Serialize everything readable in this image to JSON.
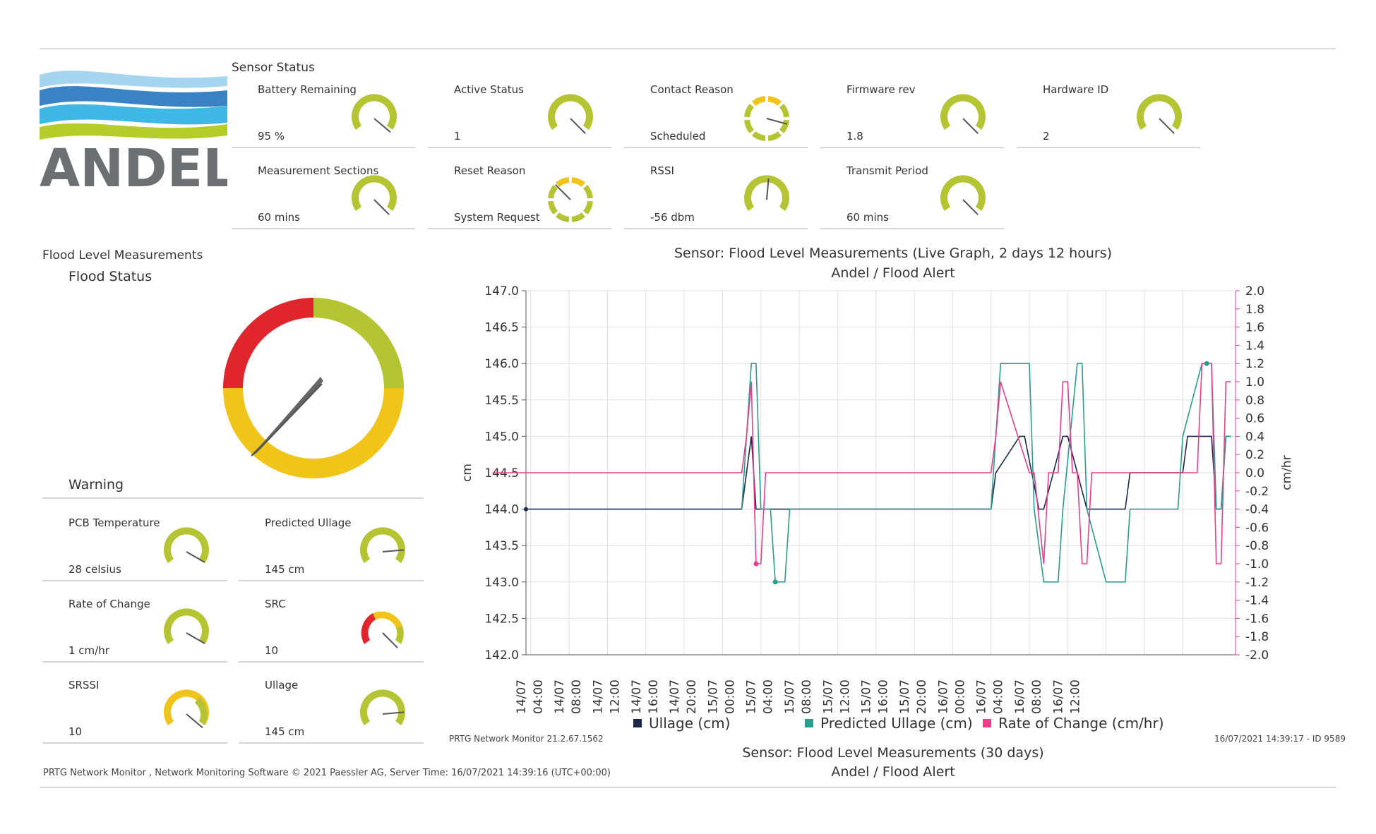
{
  "logo": {
    "text": "ANDEL"
  },
  "sensor_status": {
    "title": "Sensor Status",
    "tiles": [
      {
        "label": "Battery Remaining",
        "value": "95 %"
      },
      {
        "label": "Active Status",
        "value": "1"
      },
      {
        "label": "Contact Reason",
        "value": "Scheduled"
      },
      {
        "label": "Firmware rev",
        "value": "1.8"
      },
      {
        "label": "Hardware ID",
        "value": "2"
      },
      {
        "label": "Measurement Sections",
        "value": "60 mins"
      },
      {
        "label": "Reset Reason",
        "value": "System Request"
      },
      {
        "label": "RSSI",
        "value": "-56 dbm"
      },
      {
        "label": "Transmit Period",
        "value": "60 mins"
      }
    ]
  },
  "flood": {
    "section_title": "Flood Level Measurements",
    "status_title": "Flood Status",
    "warning_title": "Warning",
    "tiles": [
      {
        "label": "PCB Temperature",
        "value": "28 celsius"
      },
      {
        "label": "Predicted Ullage",
        "value": "145 cm"
      },
      {
        "label": "Rate of Change",
        "value": "1 cm/hr"
      },
      {
        "label": "SRC",
        "value": "10"
      },
      {
        "label": "SRSSI",
        "value": "10"
      },
      {
        "label": "Ullage",
        "value": "145 cm"
      }
    ]
  },
  "chart_data": {
    "type": "line",
    "title": "Sensor: Flood Level Measurements (Live Graph, 2 days 12 hours)",
    "subtitle": "Andel / Flood Alert",
    "ylabel": "cm",
    "y2label": "cm/hr",
    "ylim": [
      142.0,
      147.0
    ],
    "y2lim": [
      -2.0,
      2.0
    ],
    "yticks": [
      "147.0",
      "146.5",
      "146.0",
      "145.5",
      "145.0",
      "144.5",
      "144.0",
      "143.5",
      "143.0",
      "142.5",
      "142.0"
    ],
    "y2ticks": [
      "2.0",
      "1.8",
      "1.6",
      "1.4",
      "1.2",
      "1.0",
      "0.8",
      "0.6",
      "0.4",
      "0.2",
      "0.0",
      "-0.2",
      "-0.4",
      "-0.6",
      "-0.8",
      "-1.0",
      "-1.2",
      "-1.4",
      "-1.6",
      "-1.8",
      "-2.0"
    ],
    "xticks": [
      "14/07",
      "04:00",
      "14/07",
      "08:00",
      "14/07",
      "12:00",
      "14/07",
      "16:00",
      "14/07",
      "20:00",
      "15/07",
      "00:00",
      "15/07",
      "04:00",
      "15/07",
      "08:00",
      "15/07",
      "12:00",
      "15/07",
      "16:00",
      "15/07",
      "20:00",
      "16/07",
      "00:00",
      "16/07",
      "04:00",
      "16/07",
      "08:00",
      "16/07",
      "12:00"
    ],
    "grid": true,
    "legend_position": "bottom",
    "x_unit": "hours since 14/07 00:00",
    "series": [
      {
        "name": "Ullage (cm)",
        "color": "#1b2a4a",
        "axis": "left",
        "x": [
          3.5,
          26,
          26.5,
          27,
          27.5,
          52,
          52.5,
          55,
          55.5,
          57,
          57.5,
          59.5,
          60,
          62,
          62.5,
          63.5,
          64,
          66,
          66.5,
          72,
          72.5,
          75,
          75.5,
          76,
          76.5,
          77
        ],
        "y": [
          144.0,
          144.0,
          144.5,
          145.0,
          144.0,
          144.0,
          144.5,
          145.0,
          145.0,
          144.0,
          144.0,
          145.0,
          145.0,
          144.0,
          144.0,
          144.0,
          144.0,
          144.0,
          144.5,
          144.5,
          145.0,
          145.0,
          144.0,
          144.0,
          145.0,
          145.0
        ]
      },
      {
        "name": "Predicted Ullage (cm)",
        "color": "#2a9d8f",
        "axis": "left",
        "x": [
          26,
          26.5,
          27,
          27.5,
          28,
          29,
          29.5,
          30.5,
          31,
          52,
          52.5,
          53,
          56,
          56.5,
          57.5,
          59,
          59.5,
          61,
          61.5,
          62,
          64,
          64.5,
          66,
          66.5,
          67,
          71.5,
          72,
          74,
          74.5,
          75,
          75.5,
          76,
          76.5,
          77
        ],
        "y": [
          144.0,
          145.0,
          146.0,
          146.0,
          144.0,
          144.0,
          143.0,
          143.0,
          144.0,
          144.0,
          145.0,
          146.0,
          146.0,
          144.0,
          143.0,
          143.0,
          144.0,
          146.0,
          146.0,
          144.0,
          143.0,
          143.0,
          143.0,
          144.0,
          144.0,
          144.0,
          145.0,
          146.0,
          146.0,
          146.0,
          144.0,
          144.0,
          145.0,
          145.0
        ]
      },
      {
        "name": "Rate of Change (cm/hr)",
        "color": "#e83e8c",
        "axis": "right",
        "x": [
          0,
          26,
          26.5,
          27,
          27.5,
          28,
          28.5,
          29,
          52,
          52.5,
          53,
          56,
          56.5,
          57.5,
          58,
          59,
          59.5,
          60,
          60.5,
          61,
          61.5,
          62,
          62.5,
          63,
          63.5,
          73.5,
          74,
          75,
          75.5,
          76,
          76.5,
          77
        ],
        "y": [
          0.0,
          0.0,
          0.4,
          1.0,
          -1.0,
          -1.0,
          0.0,
          0.0,
          0.0,
          0.4,
          1.0,
          0.0,
          0.0,
          -1.0,
          0.0,
          0.0,
          1.0,
          1.0,
          0.0,
          0.0,
          -1.0,
          -1.0,
          0.0,
          0.0,
          0.0,
          0.0,
          1.2,
          1.2,
          -1.0,
          -1.0,
          1.0,
          1.0
        ]
      }
    ]
  },
  "footer": {
    "prtg_version": "PRTG Network Monitor 21.2.67.1562",
    "timestamp_id": "16/07/2021 14:39:17 - ID 9589",
    "chart2_title": "Sensor: Flood Level Measurements (30 days)",
    "chart2_subtitle": "Andel / Flood Alert",
    "copyright": "PRTG Network Monitor , Network Monitoring Software © 2021 Paessler AG, Server Time: 16/07/2021 14:39:16 (UTC+00:00)"
  },
  "colors": {
    "gauge_green": "#b5c433",
    "gauge_yellow": "#f0c419",
    "gauge_red": "#e0252d",
    "needle": "#555555"
  }
}
